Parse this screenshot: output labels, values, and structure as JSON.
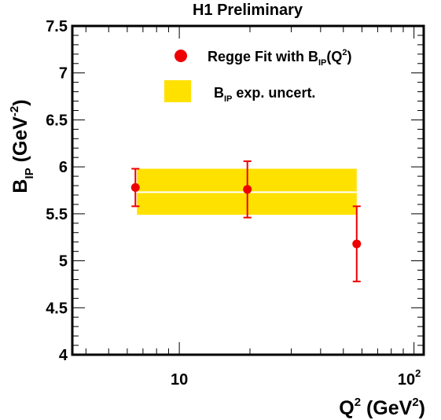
{
  "chart_data": {
    "type": "scatter",
    "title": "H1 Preliminary",
    "xlabel": {
      "base": "Q",
      "sup": "2",
      "unit_pre": " (GeV",
      "unit_sup": "2",
      "unit_post": ")"
    },
    "ylabel": {
      "base": "B",
      "sub": "IP",
      "unit_pre": " (GeV",
      "unit_sup": "-2",
      "unit_post": ")"
    },
    "x_scale": "log",
    "xlim": [
      3.5,
      110
    ],
    "ylim": [
      4,
      7.5
    ],
    "x_tick_labels": [
      {
        "value": 10,
        "base": "10",
        "sup": ""
      },
      {
        "value": 100,
        "base": "10",
        "sup": "2"
      }
    ],
    "y_ticks": [
      4,
      4.5,
      5,
      5.5,
      6,
      6.5,
      7,
      7.5
    ],
    "y_tick_labels": [
      "4",
      "4.5",
      "5",
      "5.5",
      "6",
      "6.5",
      "7",
      "7.5"
    ],
    "series": [
      {
        "name": "Regge Fit with B_IP(Q^2)",
        "x": [
          6.5,
          19.5,
          57
        ],
        "y": [
          5.78,
          5.76,
          5.18
        ],
        "err": [
          0.2,
          0.3,
          0.4
        ]
      }
    ],
    "band": {
      "x_range": [
        6.6,
        57
      ],
      "center": 5.73,
      "low": 5.49,
      "high": 5.98
    },
    "legend": {
      "placement": "top-right",
      "entries": [
        {
          "kind": "marker",
          "base": "Regge Fit with B",
          "sub": "IP",
          "mid": "(Q",
          "sup": "2",
          "post": ")"
        },
        {
          "kind": "band",
          "base": "B",
          "sub": "IP",
          "post": " exp. uncert."
        }
      ]
    },
    "grid": false,
    "colors": {
      "points": "#ee0000",
      "band": "#ffe100",
      "band_center": "#ffffff",
      "frame": "#000000"
    }
  }
}
